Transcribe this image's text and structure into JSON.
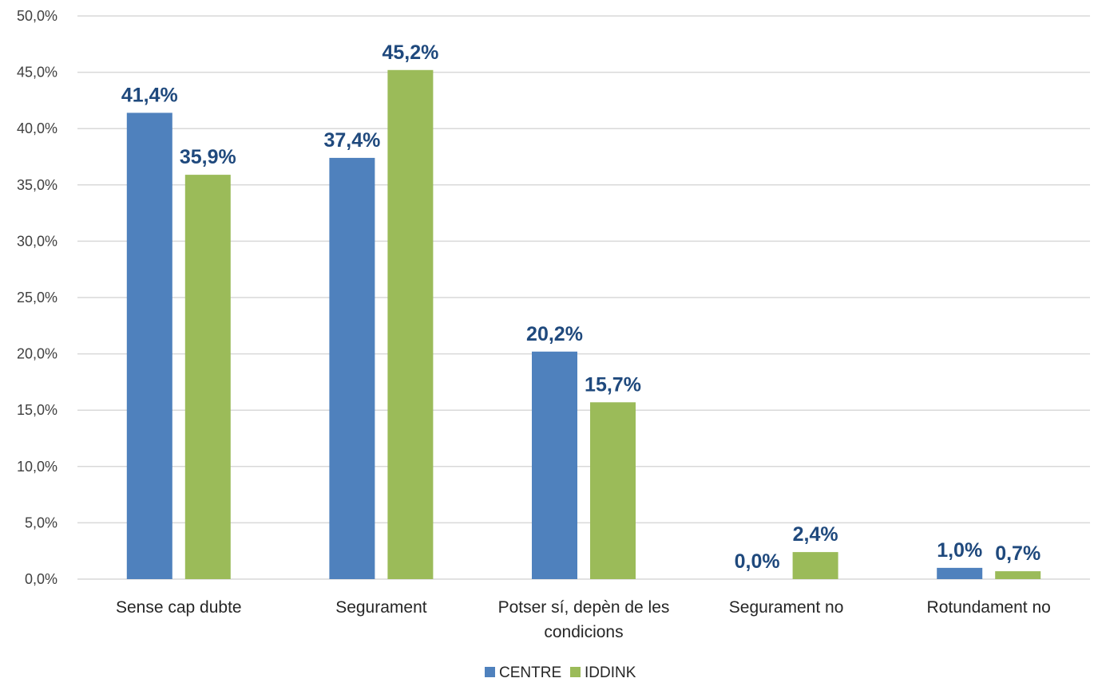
{
  "chart_data": {
    "type": "bar",
    "categories": [
      [
        "Sense cap dubte"
      ],
      [
        "Segurament"
      ],
      [
        "Potser sí, depèn de les",
        "condicions"
      ],
      [
        "Segurament no"
      ],
      [
        "Rotundament no"
      ]
    ],
    "series": [
      {
        "name": "CENTRE",
        "color": "#4F81BD",
        "values": [
          41.4,
          37.4,
          20.2,
          0.0,
          1.0
        ],
        "labels": [
          "41,4%",
          "37,4%",
          "20,2%",
          "0,0%",
          "1,0%"
        ]
      },
      {
        "name": "IDDINK",
        "color": "#9BBB59",
        "values": [
          35.9,
          45.2,
          15.7,
          2.4,
          0.7
        ],
        "labels": [
          "35,9%",
          "45,2%",
          "15,7%",
          "2,4%",
          "0,7%"
        ]
      }
    ],
    "yticks": [
      "0,0%",
      "5,0%",
      "10,0%",
      "15,0%",
      "20,0%",
      "25,0%",
      "30,0%",
      "35,0%",
      "40,0%",
      "45,0%",
      "50,0%"
    ],
    "ylim": [
      0,
      50
    ],
    "grid": true,
    "legend_position": "bottom",
    "label_color": "#1F497D",
    "grid_color": "#D9D9D9"
  }
}
